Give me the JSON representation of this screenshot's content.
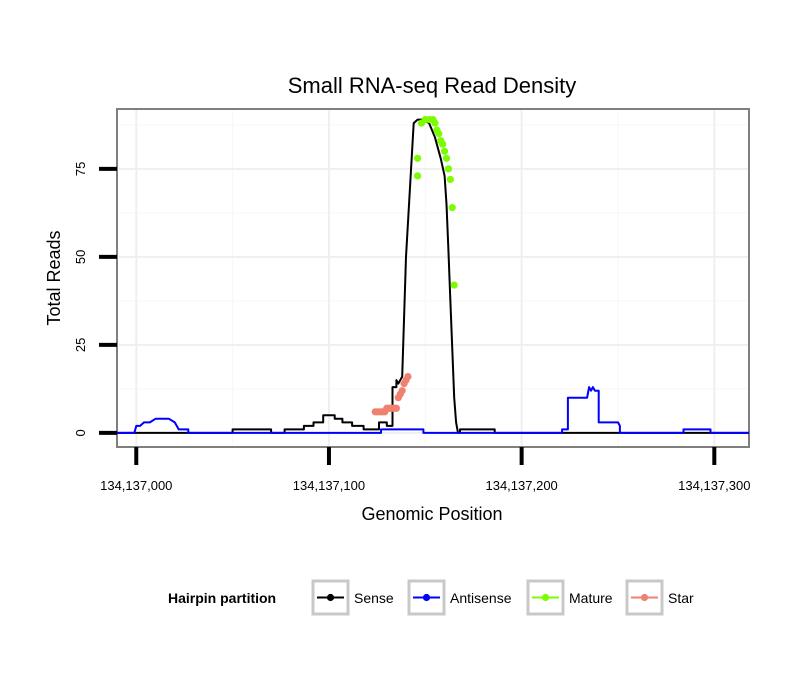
{
  "chart_data": {
    "type": "line",
    "title": "Small RNA-seq Read Density",
    "xlabel": "Genomic Position",
    "ylabel": "Total Reads",
    "xlim": [
      134136990,
      134137318
    ],
    "ylim": [
      -4,
      92
    ],
    "grid": true,
    "x_ticks": [
      134137000,
      134137100,
      134137200,
      134137300
    ],
    "x_tick_labels": [
      "134,137,000",
      "134,137,100",
      "134,137,200",
      "134,137,300"
    ],
    "y_ticks": [
      0,
      25,
      50,
      75
    ],
    "y_tick_labels": [
      "0",
      "25",
      "50",
      "75"
    ],
    "legend": {
      "title": "Hairpin partition",
      "position": "bottom",
      "entries": [
        {
          "label": "Sense",
          "color": "#000000"
        },
        {
          "label": "Antisense",
          "color": "#0000ff"
        },
        {
          "label": "Mature",
          "color": "#7cfc00"
        },
        {
          "label": "Star",
          "color": "#f08070"
        }
      ]
    },
    "series": [
      {
        "name": "Sense",
        "color": "#000000",
        "x": [
          134136990,
          134137050,
          134137050,
          134137070,
          134137070,
          134137077,
          134137077,
          134137087,
          134137087,
          134137092,
          134137092,
          134137097,
          134137097,
          134137103,
          134137103,
          134137107,
          134137107,
          134137112,
          134137112,
          134137118,
          134137118,
          134137126,
          134137126,
          134137130,
          134137130,
          134137133,
          134137133,
          134137135,
          134137135,
          134137136,
          134137138,
          134137140,
          134137144,
          134137146,
          134137149,
          134137152,
          134137155,
          134137158,
          134137160,
          134137161,
          134137162,
          134137163,
          134137165,
          134137166,
          134137167,
          134137168,
          134137168,
          134137186,
          134137186,
          134137318
        ],
        "values": [
          0,
          0,
          1,
          1,
          0,
          0,
          1,
          1,
          2,
          2,
          3,
          3,
          5,
          5,
          4,
          4,
          3,
          3,
          2,
          2,
          1,
          1,
          3,
          3,
          2,
          2,
          13,
          13,
          15,
          14,
          16,
          50,
          88,
          89,
          89,
          88,
          84,
          78,
          73,
          65,
          52,
          38,
          10,
          3,
          0,
          0,
          1,
          1,
          0,
          0
        ]
      },
      {
        "name": "Antisense",
        "color": "#0000ff",
        "x": [
          134136990,
          134136999,
          134137000,
          134137002,
          134137004,
          134137007,
          134137010,
          134137017,
          134137020,
          134137022,
          134137027,
          134137027,
          134137127,
          134137127,
          134137149,
          134137149,
          134137221,
          134137221,
          134137224,
          134137224,
          134137234,
          134137235,
          134137236,
          134137237,
          134137238,
          134137240,
          134137240,
          134137250,
          134137251,
          134137251,
          134137284,
          134137284,
          134137298,
          134137298,
          134137318
        ],
        "values": [
          0,
          0,
          2,
          2,
          3,
          3,
          4,
          4,
          3,
          1,
          1,
          0,
          0,
          1,
          1,
          0,
          0,
          1,
          1,
          10,
          10,
          13,
          12,
          13,
          12,
          12,
          3,
          3,
          2,
          0,
          0,
          1,
          1,
          0,
          0
        ]
      },
      {
        "name": "Mature",
        "color": "#7cfc00",
        "x": [
          134137146,
          134137146,
          134137148,
          134137150,
          134137152,
          134137154,
          134137155,
          134137156,
          134137157,
          134137158,
          134137159,
          134137160,
          134137161,
          134137162,
          134137163,
          134137164,
          134137165
        ],
        "values": [
          73,
          78,
          88,
          89,
          89,
          89,
          88,
          86,
          85,
          83,
          82,
          80,
          78,
          75,
          72,
          64,
          42
        ]
      },
      {
        "name": "Star",
        "color": "#f08070",
        "x": [
          134137124,
          134137125,
          134137126,
          134137127,
          134137128,
          134137129,
          134137130,
          134137131,
          134137132,
          134137133,
          134137134,
          134137135,
          134137136,
          134137137,
          134137138,
          134137139,
          134137140,
          134137141
        ],
        "values": [
          6,
          6,
          6,
          6,
          6,
          6,
          7,
          7,
          7,
          7,
          7,
          7,
          10,
          11,
          12,
          14,
          15,
          16
        ]
      }
    ]
  }
}
